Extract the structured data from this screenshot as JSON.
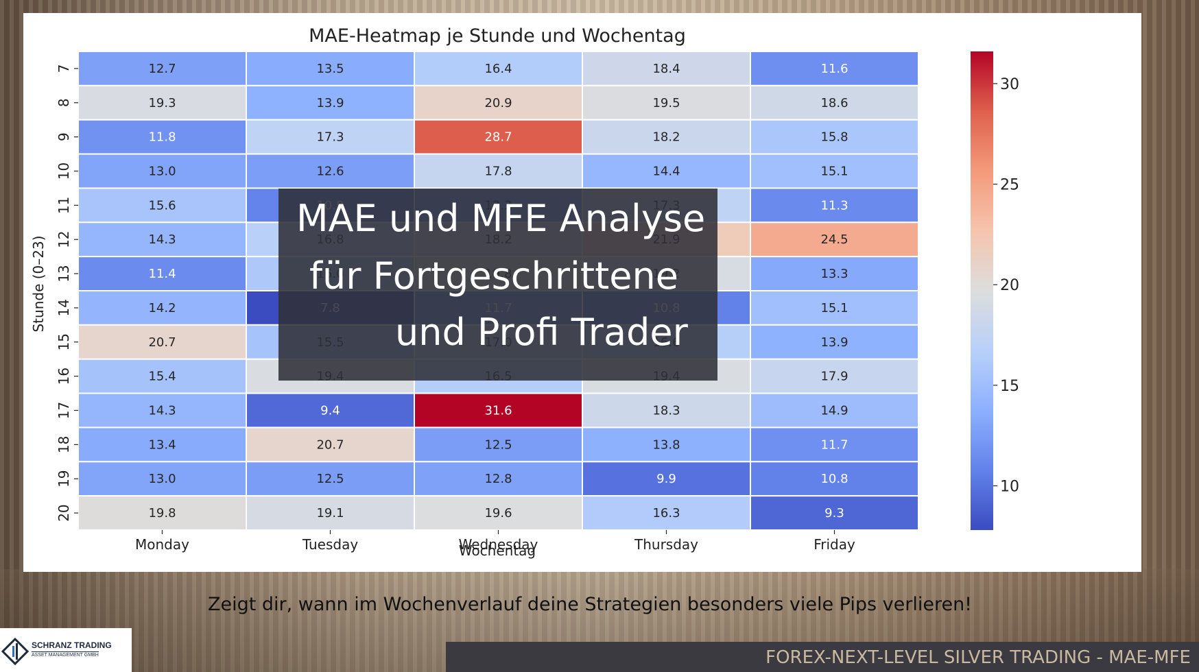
{
  "chart_data": {
    "type": "heatmap",
    "title": "MAE-Heatmap je Stunde und Wochentag",
    "xlabel": "Wochentag",
    "ylabel": "Stunde (0–23)",
    "x_categories": [
      "Monday",
      "Tuesday",
      "Wednesday",
      "Thursday",
      "Friday"
    ],
    "y_categories": [
      "7",
      "8",
      "9",
      "10",
      "11",
      "12",
      "13",
      "14",
      "15",
      "16",
      "17",
      "18",
      "19",
      "20"
    ],
    "values": [
      [
        12.7,
        13.5,
        16.4,
        18.4,
        11.6
      ],
      [
        19.3,
        13.9,
        20.9,
        19.5,
        18.6
      ],
      [
        11.8,
        17.3,
        28.7,
        18.2,
        15.8
      ],
      [
        13.0,
        12.6,
        17.8,
        14.4,
        15.1
      ],
      [
        15.6,
        10.9,
        12.2,
        17.3,
        11.3
      ],
      [
        14.3,
        16.8,
        18.2,
        21.9,
        24.5
      ],
      [
        11.4,
        16.0,
        19.8,
        19.2,
        13.3
      ],
      [
        14.2,
        7.8,
        11.7,
        10.8,
        15.1
      ],
      [
        20.7,
        15.5,
        17.0,
        16.6,
        13.9
      ],
      [
        15.4,
        19.4,
        16.5,
        19.4,
        17.9
      ],
      [
        14.3,
        9.4,
        31.6,
        18.3,
        14.9
      ],
      [
        13.4,
        20.7,
        12.5,
        13.8,
        11.7
      ],
      [
        13.0,
        12.5,
        12.8,
        9.9,
        10.8
      ],
      [
        19.8,
        19.1,
        19.6,
        16.3,
        9.3
      ]
    ],
    "colorbar": {
      "min": 7.8,
      "max": 31.6,
      "ticks": [
        10,
        15,
        20,
        25,
        30
      ],
      "colormap": "coolwarm"
    }
  },
  "overlay": {
    "line1": "MAE und MFE Analyse",
    "line2": "für Fortgeschrittene",
    "line3": "und Profi Trader"
  },
  "subtitle": "Zeigt dir, wann im Wochenverlauf deine Strategien besonders viele Pips verlieren!",
  "logo": {
    "name": "SCHRANZ TRADING",
    "sub": "ASSET MANAGEMENT GMBH"
  },
  "footer": "FOREX-NEXT-LEVEL SILVER TRADING - MAE-MFE",
  "colors": {
    "overlay_bg": "#303038",
    "footer_bg": "#3a3a40",
    "footer_text": "#c9b9a0"
  }
}
